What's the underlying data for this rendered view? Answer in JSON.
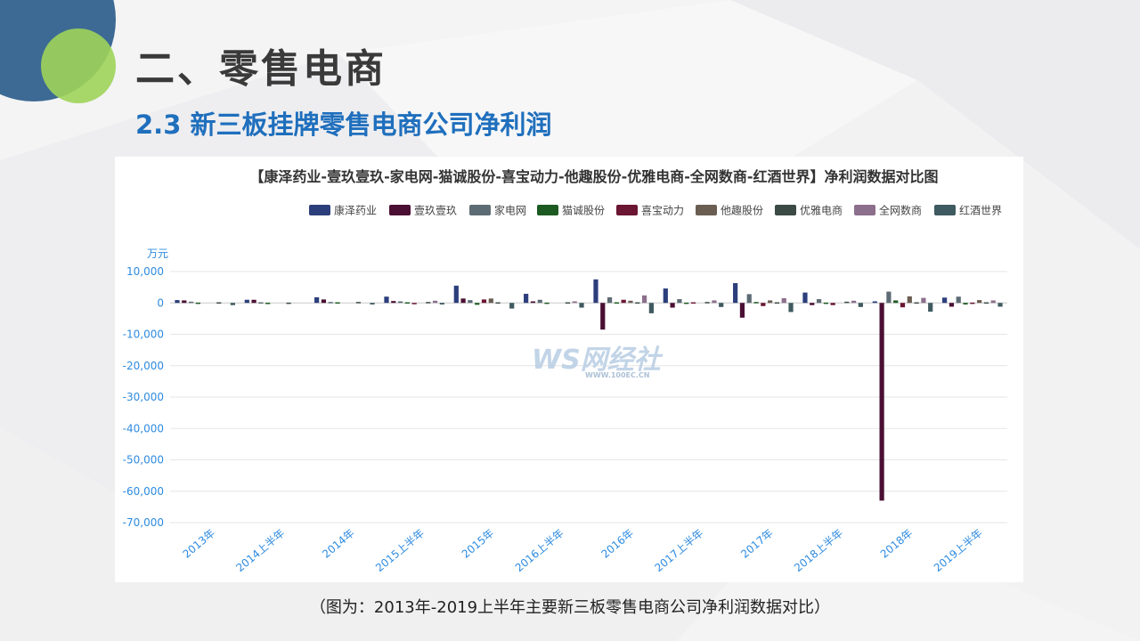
{
  "slide": {
    "title": "二、零售电商",
    "subtitle": "2.3 新三板挂牌零售电商公司净利润",
    "caption": "（图为：2013年-2019上半年主要新三板零售电商公司净利润数据对比）"
  },
  "watermark": {
    "logo": "WS网经社",
    "url": "WWW.100EC.CN"
  },
  "colors": {
    "accent_blue": "#1f6fbd",
    "circle_dark": "#3d6a94",
    "circle_green": "#9ed45a",
    "axis_label": "#2e8be0"
  },
  "chart_data": {
    "type": "bar",
    "title": "【康泽药业-壹玖壹玖-家电网-猫诚股份-喜宝动力-他趣股份-优雅电商-全网数商-红酒世界】净利润数据对比图",
    "unit_label": "万元",
    "legend_position": "top-right",
    "grid": true,
    "ylim": [
      -70000,
      10000
    ],
    "yticks": [
      "10,000",
      "0",
      "-10,000",
      "-20,000",
      "-30,000",
      "-40,000",
      "-50,000",
      "-60,000",
      "-70,000"
    ],
    "ytick_values": [
      10000,
      0,
      -10000,
      -20000,
      -30000,
      -40000,
      -50000,
      -60000,
      -70000
    ],
    "categories": [
      "2013年",
      "2014上半年",
      "2014年",
      "2015上半年",
      "2015年",
      "2016上半年",
      "2016年",
      "2017上半年",
      "2017年",
      "2018上半年",
      "2018年",
      "2019上半年"
    ],
    "series": [
      {
        "name": "康泽药业",
        "color": "#2c3e7b",
        "values": [
          900,
          1000,
          1800,
          2000,
          5500,
          2900,
          7500,
          4600,
          6300,
          3300,
          500,
          1700
        ]
      },
      {
        "name": "壹玖壹玖",
        "color": "#4a0f33",
        "values": [
          800,
          1000,
          1100,
          600,
          1400,
          500,
          -8500,
          -1500,
          -4700,
          -700,
          -63000,
          -1200
        ]
      },
      {
        "name": "家电网",
        "color": "#5d6b74",
        "values": [
          400,
          200,
          300,
          500,
          900,
          1000,
          1800,
          1200,
          2800,
          1200,
          3600,
          2000
        ]
      },
      {
        "name": "猫诚股份",
        "color": "#1d5a22",
        "values": [
          100,
          50,
          200,
          200,
          -600,
          100,
          200,
          100,
          300,
          100,
          800,
          -500
        ]
      },
      {
        "name": "喜宝动力",
        "color": "#6b1632",
        "values": [
          0,
          0,
          0,
          -300,
          1100,
          0,
          1000,
          200,
          -1000,
          -700,
          -1400,
          100
        ]
      },
      {
        "name": "他趣股份",
        "color": "#6a5d52",
        "values": [
          0,
          0,
          0,
          0,
          1400,
          0,
          700,
          0,
          800,
          0,
          2100,
          900
        ]
      },
      {
        "name": "优雅电商",
        "color": "#3c4a45",
        "values": [
          200,
          100,
          300,
          300,
          200,
          200,
          200,
          300,
          200,
          400,
          200,
          200
        ]
      },
      {
        "name": "全网数商",
        "color": "#8c6f8c",
        "values": [
          0,
          0,
          0,
          700,
          0,
          500,
          2400,
          800,
          1500,
          700,
          1600,
          800
        ]
      },
      {
        "name": "红酒世界",
        "color": "#3f5a60",
        "values": [
          -700,
          0,
          -500,
          -500,
          -1800,
          -1500,
          -3300,
          -1300,
          -2900,
          -1300,
          -2800,
          -1200
        ]
      }
    ]
  }
}
